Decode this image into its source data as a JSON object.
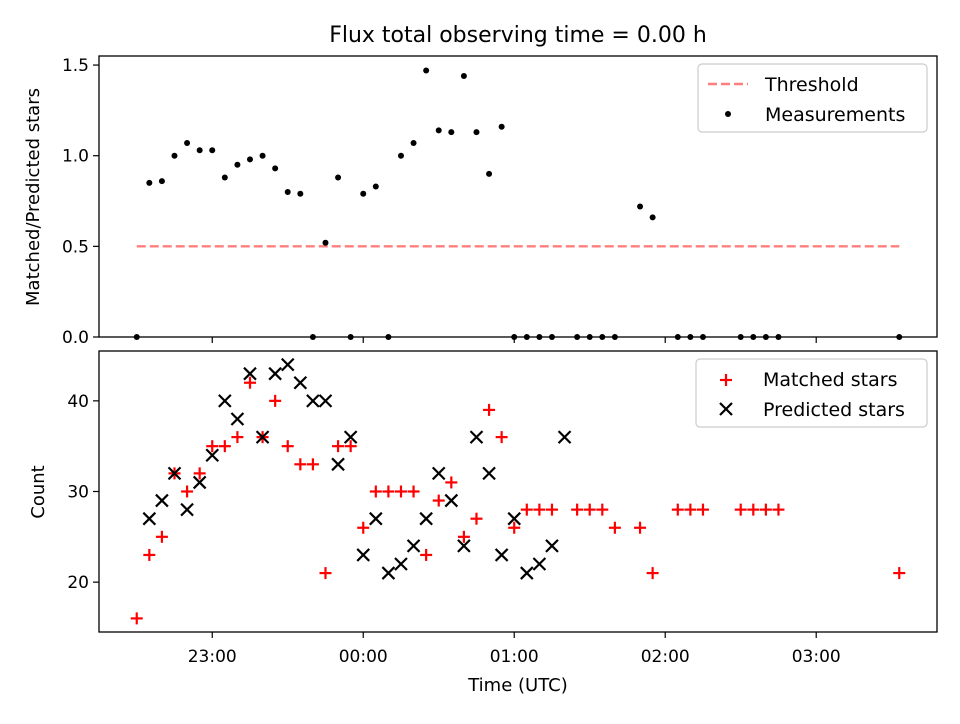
{
  "figure": {
    "title": "Flux total observing time = 0.00 h",
    "xlabel": "Time (UTC)"
  },
  "colors": {
    "threshold": "#ff7f7f",
    "measurements": "#000000",
    "matched": "#ff0000",
    "predicted": "#000000"
  },
  "chart_data": [
    {
      "type": "scatter",
      "ylabel": "Matched/Predicted stars",
      "xlim": [
        "22:15",
        "03:48"
      ],
      "ylim": [
        0,
        1.55
      ],
      "yticks": [
        "0.0",
        "0.5",
        "1.0",
        "1.5"
      ],
      "grid": false,
      "legend_position": "top-right",
      "series": [
        {
          "name": "Threshold",
          "kind": "dashed-line",
          "x": [
            "22:30",
            "03:33"
          ],
          "y": [
            0.5,
            0.5
          ]
        },
        {
          "name": "Measurements",
          "kind": "dot",
          "x": [
            "22:30",
            "22:35",
            "22:40",
            "22:45",
            "22:50",
            "22:55",
            "23:00",
            "23:05",
            "23:10",
            "23:15",
            "23:20",
            "23:25",
            "23:30",
            "23:35",
            "23:40",
            "23:45",
            "23:50",
            "23:55",
            "00:00",
            "00:05",
            "00:10",
            "00:15",
            "00:20",
            "00:25",
            "00:30",
            "00:35",
            "00:40",
            "00:45",
            "00:50",
            "00:55",
            "01:00",
            "01:05",
            "01:10",
            "01:15",
            "01:25",
            "01:30",
            "01:35",
            "01:40",
            "01:50",
            "01:55",
            "02:05",
            "02:10",
            "02:15",
            "02:30",
            "02:35",
            "02:40",
            "02:45",
            "03:33"
          ],
          "y": [
            0,
            0.85,
            0.86,
            1.0,
            1.07,
            1.03,
            1.03,
            0.88,
            0.95,
            0.98,
            1.0,
            0.93,
            0.8,
            0.79,
            0,
            0.52,
            0.88,
            0,
            0.79,
            0.83,
            0,
            1.0,
            1.07,
            1.47,
            1.14,
            1.13,
            1.44,
            1.13,
            0.9,
            1.16,
            0,
            0,
            0,
            0,
            0,
            0,
            0,
            0,
            0.72,
            0.66,
            0,
            0,
            0,
            0,
            0,
            0,
            0,
            0
          ]
        }
      ]
    },
    {
      "type": "scatter",
      "ylabel": "Count",
      "xlim": [
        "22:15",
        "03:48"
      ],
      "ylim": [
        14.5,
        45.5
      ],
      "yticks": [
        "20",
        "30",
        "40"
      ],
      "xticks": [
        "23:00",
        "00:00",
        "01:00",
        "02:00",
        "03:00"
      ],
      "grid": false,
      "legend_position": "top-right",
      "series": [
        {
          "name": "Matched stars",
          "marker": "plus",
          "x": [
            "22:30",
            "22:35",
            "22:40",
            "22:45",
            "22:50",
            "22:55",
            "23:00",
            "23:05",
            "23:10",
            "23:15",
            "23:20",
            "23:25",
            "23:30",
            "23:35",
            "23:40",
            "23:45",
            "23:50",
            "23:55",
            "00:00",
            "00:05",
            "00:10",
            "00:15",
            "00:20",
            "00:25",
            "00:30",
            "00:35",
            "00:40",
            "00:45",
            "00:50",
            "00:55",
            "01:00",
            "01:05",
            "01:10",
            "01:15",
            "01:25",
            "01:30",
            "01:35",
            "01:40",
            "01:50",
            "01:55",
            "02:05",
            "02:10",
            "02:15",
            "02:30",
            "02:35",
            "02:40",
            "02:45",
            "03:33"
          ],
          "y": [
            16,
            23,
            25,
            32,
            30,
            32,
            35,
            35,
            36,
            42,
            36,
            40,
            35,
            33,
            33,
            21,
            35,
            35,
            26,
            30,
            30,
            30,
            30,
            23,
            29,
            31,
            25,
            27,
            39,
            36,
            26,
            28,
            28,
            28,
            28,
            28,
            28,
            26,
            26,
            21,
            28,
            28,
            28,
            28,
            28,
            28,
            28,
            21
          ]
        },
        {
          "name": "Predicted stars",
          "marker": "x",
          "x": [
            "22:35",
            "22:40",
            "22:45",
            "22:50",
            "22:55",
            "23:00",
            "23:05",
            "23:10",
            "23:15",
            "23:20",
            "23:25",
            "23:30",
            "23:35",
            "23:40",
            "23:45",
            "23:50",
            "23:55",
            "00:00",
            "00:05",
            "00:10",
            "00:15",
            "00:20",
            "00:25",
            "00:30",
            "00:35",
            "00:40",
            "00:45",
            "00:50",
            "00:55",
            "01:00",
            "01:05",
            "01:10",
            "01:15",
            "01:20"
          ],
          "y": [
            27,
            29,
            32,
            28,
            31,
            34,
            40,
            38,
            43,
            36,
            43,
            44,
            42,
            40,
            40,
            33,
            36,
            23,
            27,
            21,
            22,
            24,
            27,
            32,
            29,
            24,
            36,
            32,
            23,
            27,
            21,
            22,
            24,
            36
          ]
        }
      ]
    }
  ]
}
